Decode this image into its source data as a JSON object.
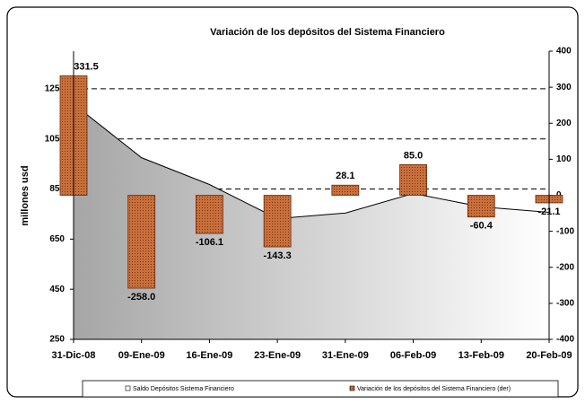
{
  "chart_data": {
    "type": "combo",
    "title": "Variación de los depósitos del Sistema Financiero",
    "y_label": "millones usd",
    "categories": [
      "31-Dic-08",
      "09-Ene-09",
      "16-Ene-09",
      "23-Ene-09",
      "31-Ene-09",
      "06-Feb-09",
      "13-Feb-09",
      "20-Feb-09"
    ],
    "series": [
      {
        "name": "Saldo Depósitos Sistema Financiero",
        "type": "area",
        "color": "#a6a6a6",
        "values": [
          1189,
          975,
          868,
          732,
          754,
          832,
          779,
          757
        ]
      },
      {
        "name": "Variación de los depósitos del Sistema Financiero (der)",
        "type": "bar",
        "axis": "y2",
        "color": "#c8703c",
        "values": [
          331.5,
          -258.0,
          -106.1,
          -143.3,
          28.1,
          85.0,
          -60.4,
          -21.1
        ],
        "value_labels": [
          "331.5",
          "-258.0",
          "-106.1",
          "-143.3",
          "28.1",
          "85.0",
          "-60.4",
          "-21.1"
        ]
      }
    ],
    "ylim": [
      250,
      1400
    ],
    "yticks": [
      250,
      450,
      650,
      850,
      1050,
      1250
    ],
    "y2lim": [
      -400,
      400
    ],
    "y2ticks": [
      -400,
      -300,
      -200,
      -100,
      0,
      100,
      200,
      300,
      400
    ],
    "grid": true
  }
}
